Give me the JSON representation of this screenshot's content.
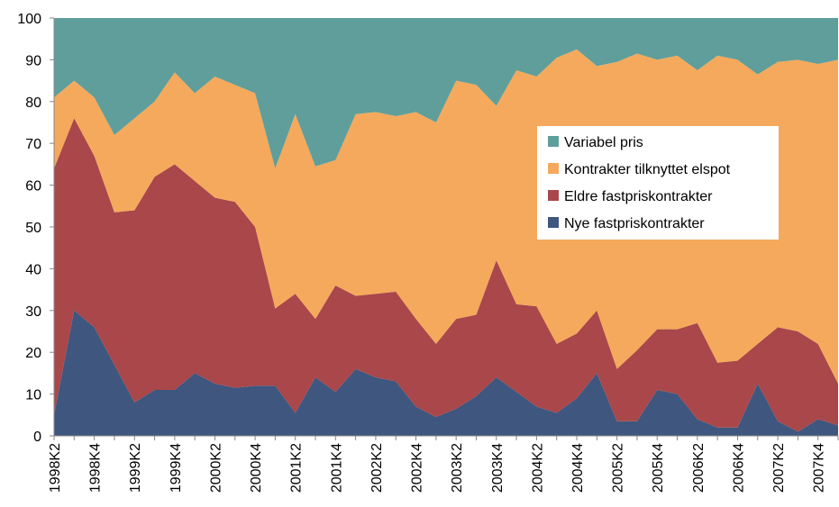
{
  "chart_data": {
    "type": "stacked_area",
    "categories": [
      "1998K2",
      null,
      "1998K4",
      null,
      "1999K2",
      null,
      "1999K4",
      null,
      "2000K2",
      null,
      "2000K4",
      null,
      "2001K2",
      null,
      "2001K4",
      null,
      "2002K2",
      null,
      "2002K4",
      null,
      "2003K2",
      null,
      "2003K4",
      null,
      "2004K2",
      null,
      "2004K4",
      null,
      "2005K2",
      null,
      "2005K4",
      null,
      "2006K2",
      null,
      "2006K4",
      null,
      "2007K2",
      null,
      "2007K4",
      null
    ],
    "series": [
      {
        "name": "Variabel pris",
        "color": "#5f9e9a",
        "values": [
          19,
          15,
          19,
          28,
          24,
          20,
          13,
          18,
          14,
          16,
          18,
          36,
          23,
          35.5,
          34,
          23,
          22.5,
          23.5,
          22.5,
          25,
          15,
          16,
          21,
          12.5,
          14,
          9.5,
          7.5,
          11.5,
          10.5,
          8.5,
          10,
          9,
          12.5,
          9,
          10,
          13.5,
          10.5,
          10,
          11,
          10
        ]
      },
      {
        "name": "Kontrakter tilknyttet elspot",
        "color": "#f5a95c",
        "values": [
          17,
          9,
          14,
          18.5,
          22,
          18,
          22,
          21,
          29,
          28,
          32,
          33.5,
          43,
          36.5,
          30,
          43.5,
          43.5,
          42,
          49.5,
          53,
          57,
          55,
          37,
          56,
          55,
          68.5,
          68,
          58.5,
          73.5,
          71,
          64.5,
          65.5,
          60.5,
          73.5,
          72,
          64.5,
          63.5,
          65,
          67,
          77.5
        ]
      },
      {
        "name": "Eldre fastpriskontrakter",
        "color": "#a9474a",
        "values": [
          59,
          46,
          41,
          36.5,
          46,
          51,
          54,
          46,
          44.5,
          44.5,
          38,
          18.5,
          28.5,
          14,
          25.5,
          17.5,
          20,
          21.5,
          21,
          17.5,
          21.5,
          19.5,
          28,
          21,
          24,
          16.5,
          15.5,
          15,
          12.5,
          17,
          14.5,
          15.5,
          23,
          15.5,
          16,
          9.5,
          22.5,
          24,
          18,
          10
        ]
      },
      {
        "name": "Nye fastpriskontrakter",
        "color": "#3f567f",
        "values": [
          5,
          30,
          26,
          17,
          8,
          11,
          11,
          15,
          12.5,
          11.5,
          12,
          12,
          5.5,
          14,
          10.5,
          16,
          14,
          13,
          7,
          4.5,
          6.5,
          9.5,
          14,
          10.5,
          7,
          5.5,
          9,
          15,
          3.5,
          3.5,
          11,
          10,
          4,
          2,
          2,
          12.5,
          3.5,
          1,
          4,
          2.5
        ]
      }
    ],
    "ylim": [
      0,
      100
    ],
    "yticks": [
      0,
      10,
      20,
      30,
      40,
      50,
      60,
      70,
      80,
      90,
      100
    ],
    "legend": "inside-right"
  }
}
